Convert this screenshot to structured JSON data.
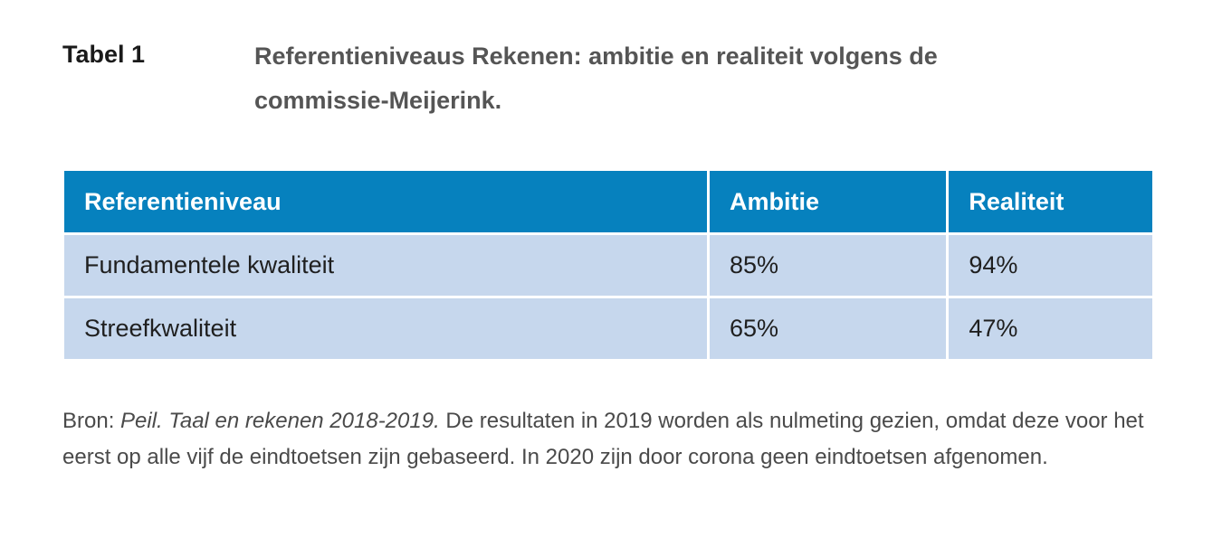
{
  "caption": {
    "label": "Tabel 1",
    "title": "Referentieniveaus Rekenen: ambitie en realiteit volgens de commissie-Meijerink."
  },
  "table": {
    "headers": [
      "Referentieniveau",
      "Ambitie",
      "Realiteit"
    ],
    "rows": [
      [
        "Fundamentele kwaliteit",
        "85%",
        "94%"
      ],
      [
        "Streefkwaliteit",
        "65%",
        "47%"
      ]
    ],
    "colors": {
      "header_bg": "#0681be",
      "header_text": "#ffffff",
      "row_bg": "#c6d7ed"
    }
  },
  "source": {
    "prefix": "Bron: ",
    "citation": "Peil. Taal en rekenen 2018-2019.",
    "text": " De resultaten in 2019 worden als nulmeting gezien, omdat deze voor het eerst op alle vijf de eindtoetsen zijn gebaseerd. In 2020 zijn door corona geen eindtoetsen afgenomen."
  }
}
